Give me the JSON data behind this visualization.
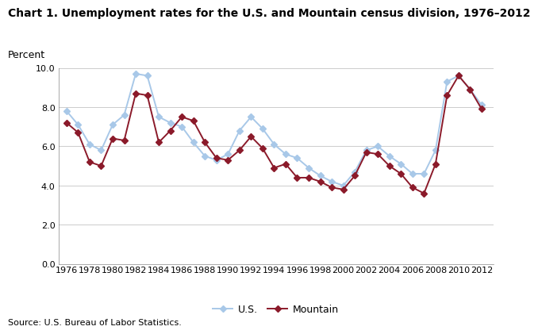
{
  "title": "Chart 1. Unemployment rates for the U.S. and Mountain census division, 1976–2012",
  "ylabel": "Percent",
  "source": "Source: U.S. Bureau of Labor Statistics.",
  "years": [
    1976,
    1977,
    1978,
    1979,
    1980,
    1981,
    1982,
    1983,
    1984,
    1985,
    1986,
    1987,
    1988,
    1989,
    1990,
    1991,
    1992,
    1993,
    1994,
    1995,
    1996,
    1997,
    1998,
    1999,
    2000,
    2001,
    2002,
    2003,
    2004,
    2005,
    2006,
    2007,
    2008,
    2009,
    2010,
    2011,
    2012
  ],
  "us": [
    7.8,
    7.1,
    6.1,
    5.8,
    7.1,
    7.6,
    9.7,
    9.6,
    7.5,
    7.2,
    7.0,
    6.2,
    5.5,
    5.3,
    5.6,
    6.8,
    7.5,
    6.9,
    6.1,
    5.6,
    5.4,
    4.9,
    4.5,
    4.2,
    4.0,
    4.7,
    5.8,
    6.0,
    5.5,
    5.1,
    4.6,
    4.6,
    5.8,
    9.3,
    9.6,
    8.9,
    8.1
  ],
  "mountain": [
    7.2,
    6.7,
    5.2,
    5.0,
    6.4,
    6.3,
    8.7,
    8.6,
    6.2,
    6.8,
    7.5,
    7.3,
    6.2,
    5.4,
    5.3,
    5.8,
    6.5,
    5.9,
    4.9,
    5.1,
    4.4,
    4.4,
    4.2,
    3.9,
    3.8,
    4.5,
    5.7,
    5.6,
    5.0,
    4.6,
    3.9,
    3.6,
    5.1,
    8.6,
    9.6,
    8.9,
    7.9
  ],
  "us_color": "#a8c8e8",
  "mountain_color": "#8b1a2a",
  "ylim": [
    0.0,
    10.0
  ],
  "yticks": [
    0.0,
    2.0,
    4.0,
    6.0,
    8.0,
    10.0
  ],
  "xtick_years": [
    1976,
    1978,
    1980,
    1982,
    1984,
    1986,
    1988,
    1990,
    1992,
    1994,
    1996,
    1998,
    2000,
    2002,
    2004,
    2006,
    2008,
    2010,
    2012
  ],
  "linewidth": 1.4,
  "markersize": 4,
  "title_fontsize": 10,
  "axis_fontsize": 8,
  "label_fontsize": 9,
  "source_fontsize": 8
}
